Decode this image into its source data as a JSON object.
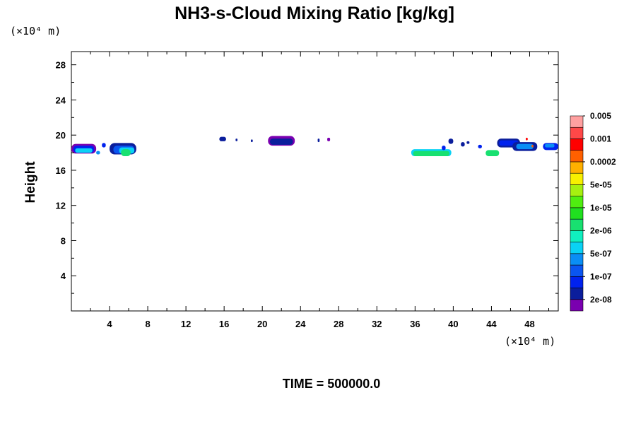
{
  "chart_data": {
    "type": "heatmap",
    "title": "NH3-s-Cloud Mixing Ratio [kg/kg]",
    "ylabel": "Height",
    "x_unit": "(×10⁴ m)",
    "y_unit": "(×10⁴ m)",
    "footer": "TIME = 500000.0",
    "xlim": [
      0,
      51
    ],
    "ylim": [
      0,
      29.5
    ],
    "x_ticks": [
      "4",
      "8",
      "12",
      "16",
      "20",
      "24",
      "28",
      "32",
      "36",
      "40",
      "44",
      "48"
    ],
    "y_ticks": [
      "4",
      "8",
      "12",
      "16",
      "20",
      "24",
      "28"
    ],
    "colorbar": {
      "colors": [
        "#7a00b0",
        "#0b1e9c",
        "#0022ee",
        "#0a55f0",
        "#0a8ef5",
        "#0ad2f5",
        "#10efc0",
        "#18e070",
        "#20e020",
        "#50ee10",
        "#a6f010",
        "#f8f000",
        "#ffb000",
        "#ff6000",
        "#ff0000",
        "#ff4848",
        "#ffa0a0"
      ],
      "labels": [
        "2e-08",
        "1e-07",
        "5e-07",
        "2e-06",
        "1e-05",
        "5e-05",
        "0.0002",
        "0.001",
        "0.005"
      ]
    },
    "blobs": [
      {
        "x": [
          0.0,
          2.6
        ],
        "y": [
          17.9,
          19.0
        ],
        "level": 0
      },
      {
        "x": [
          0.2,
          2.4
        ],
        "y": [
          18.0,
          18.8
        ],
        "level": 2
      },
      {
        "x": [
          0.4,
          2.2
        ],
        "y": [
          18.0,
          18.5
        ],
        "level": 5
      },
      {
        "x": [
          2.6,
          3.0
        ],
        "y": [
          17.8,
          18.2
        ],
        "level": 4
      },
      {
        "x": [
          3.2,
          3.6
        ],
        "y": [
          18.6,
          19.1
        ],
        "level": 2
      },
      {
        "x": [
          4.0,
          6.8
        ],
        "y": [
          17.8,
          19.1
        ],
        "level": 1
      },
      {
        "x": [
          4.4,
          6.6
        ],
        "y": [
          17.9,
          18.8
        ],
        "level": 3
      },
      {
        "x": [
          5.0,
          6.6
        ],
        "y": [
          17.9,
          18.6
        ],
        "level": 5
      },
      {
        "x": [
          5.2,
          6.2
        ],
        "y": [
          17.6,
          18.4
        ],
        "level": 7
      },
      {
        "x": [
          15.5,
          16.2
        ],
        "y": [
          19.3,
          19.8
        ],
        "level": 1
      },
      {
        "x": [
          17.2,
          17.4
        ],
        "y": [
          19.3,
          19.6
        ],
        "level": 1
      },
      {
        "x": [
          18.8,
          19.0
        ],
        "y": [
          19.2,
          19.5
        ],
        "level": 1
      },
      {
        "x": [
          20.6,
          23.4
        ],
        "y": [
          18.8,
          19.9
        ],
        "level": 0
      },
      {
        "x": [
          20.8,
          23.2
        ],
        "y": [
          18.9,
          19.6
        ],
        "level": 1
      },
      {
        "x": [
          25.8,
          26.0
        ],
        "y": [
          19.2,
          19.6
        ],
        "level": 1
      },
      {
        "x": [
          26.8,
          27.1
        ],
        "y": [
          19.3,
          19.7
        ],
        "level": 0
      },
      {
        "x": [
          35.6,
          39.8
        ],
        "y": [
          17.6,
          18.4
        ],
        "level": 5
      },
      {
        "x": [
          35.8,
          39.6
        ],
        "y": [
          17.6,
          18.2
        ],
        "level": 7
      },
      {
        "x": [
          38.8,
          39.2
        ],
        "y": [
          18.3,
          18.8
        ],
        "level": 2
      },
      {
        "x": [
          39.5,
          40.0
        ],
        "y": [
          19.0,
          19.6
        ],
        "level": 1
      },
      {
        "x": [
          40.8,
          41.2
        ],
        "y": [
          18.7,
          19.2
        ],
        "level": 1
      },
      {
        "x": [
          41.4,
          41.7
        ],
        "y": [
          19.0,
          19.3
        ],
        "level": 1
      },
      {
        "x": [
          42.6,
          43.0
        ],
        "y": [
          18.5,
          18.9
        ],
        "level": 2
      },
      {
        "x": [
          43.4,
          44.8
        ],
        "y": [
          17.6,
          18.3
        ],
        "level": 7
      },
      {
        "x": [
          44.6,
          47.0
        ],
        "y": [
          18.6,
          19.6
        ],
        "level": 1
      },
      {
        "x": [
          44.8,
          46.8
        ],
        "y": [
          18.8,
          19.4
        ],
        "level": 2
      },
      {
        "x": [
          46.2,
          48.8
        ],
        "y": [
          18.2,
          19.2
        ],
        "level": 1
      },
      {
        "x": [
          46.6,
          48.4
        ],
        "y": [
          18.4,
          19.0
        ],
        "level": 4
      },
      {
        "x": [
          49.4,
          51.0
        ],
        "y": [
          18.3,
          19.1
        ],
        "level": 2
      },
      {
        "x": [
          49.6,
          50.6
        ],
        "y": [
          18.6,
          19.0
        ],
        "level": 4
      },
      {
        "x": [
          47.6,
          47.8
        ],
        "y": [
          19.4,
          19.7
        ],
        "level": 14
      },
      {
        "x": [
          48.2,
          48.4
        ],
        "y": [
          18.6,
          18.9
        ],
        "level": 13
      }
    ]
  }
}
